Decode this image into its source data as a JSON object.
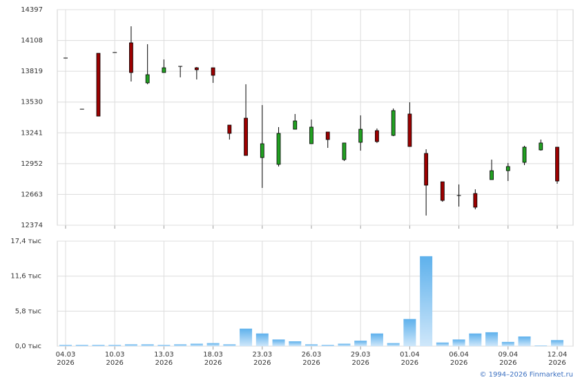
{
  "chart_data": [
    {
      "type": "candlestick",
      "open": [
        13943,
        13463,
        13988,
        13995,
        14086,
        13710,
        13807,
        13865,
        13852,
        13852,
        13314,
        13379,
        13009,
        12945,
        13275,
        13139,
        13249,
        12990,
        13152,
        13262,
        13217,
        13418,
        13048,
        12782,
        12653,
        12672,
        12802,
        12886,
        12964,
        13081,
        13107
      ],
      "high": [
        13943,
        13463,
        13988,
        13995,
        14241,
        14073,
        13930,
        13865,
        13859,
        13852,
        13314,
        13697,
        13502,
        13295,
        13418,
        13366,
        13249,
        13146,
        13405,
        13282,
        13470,
        13528,
        13087,
        12782,
        12757,
        12711,
        12990,
        12958,
        13120,
        13178,
        13107
      ],
      "low": [
        13943,
        13463,
        13398,
        13995,
        13723,
        13697,
        13807,
        13762,
        13742,
        13710,
        13178,
        13029,
        12724,
        12925,
        13275,
        13139,
        13100,
        12977,
        13074,
        13146,
        13210,
        13113,
        12465,
        12594,
        12549,
        12523,
        12802,
        12789,
        12938,
        13074,
        12763
      ],
      "close": [
        13943,
        13463,
        13398,
        13995,
        13807,
        13787,
        13852,
        13865,
        13833,
        13781,
        13236,
        13029,
        13139,
        13236,
        13353,
        13295,
        13178,
        13146,
        13275,
        13159,
        13450,
        13113,
        12750,
        12607,
        12653,
        12543,
        12886,
        12925,
        13107,
        13146,
        12789
      ],
      "up_color": "#22a022",
      "down_color": "#9b0000",
      "ylim": [
        12374,
        14397
      ],
      "yticks": [
        12374,
        12663,
        12952,
        13241,
        13530,
        13819,
        14108,
        14397
      ],
      "grid": true
    },
    {
      "type": "bar",
      "categories": [
        "04.03",
        null,
        null,
        "10.03",
        null,
        null,
        "13.03",
        null,
        null,
        "18.03",
        null,
        null,
        "23.03",
        null,
        null,
        "26.03",
        null,
        null,
        "29.03",
        null,
        null,
        "01.04",
        null,
        null,
        "06.04",
        null,
        null,
        "09.04",
        null,
        null,
        "12.04"
      ],
      "category_year": "2026",
      "values": [
        0.2,
        0.2,
        0.2,
        0.2,
        0.3,
        0.3,
        0.2,
        0.3,
        0.4,
        0.5,
        0.3,
        2.9,
        2.1,
        1.1,
        0.8,
        0.3,
        0.2,
        0.4,
        0.9,
        2.1,
        0.5,
        4.5,
        14.9,
        0.6,
        1.1,
        2.1,
        2.3,
        0.7,
        1.6,
        0.1,
        1.0
      ],
      "ylim": [
        0,
        17.4
      ],
      "yticks": [
        {
          "value": 0,
          "label": "0,0 тыс"
        },
        {
          "value": 5.8,
          "label": "5,8 тыс"
        },
        {
          "value": 11.6,
          "label": "11,6 тыс"
        },
        {
          "value": 17.4,
          "label": "17,4 тыс"
        }
      ],
      "grid": true
    }
  ],
  "footer": "© 1994–2026 Finmarket.ru"
}
